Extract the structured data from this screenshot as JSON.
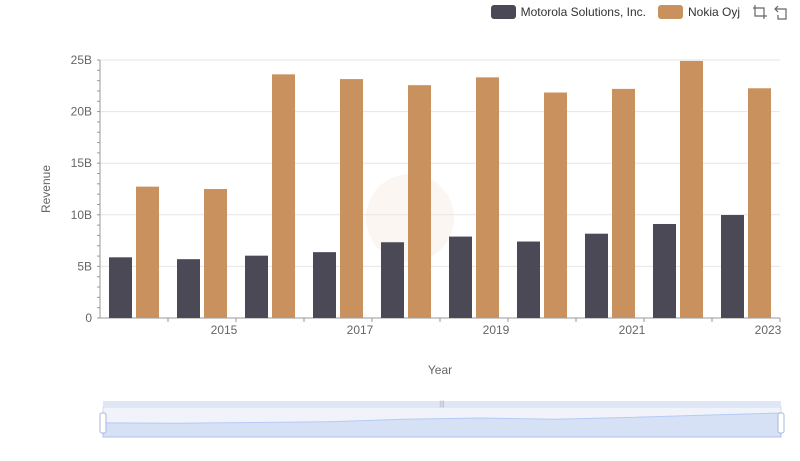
{
  "legend": {
    "items": [
      {
        "label": "Motorola Solutions, Inc.",
        "color": "#4a4955"
      },
      {
        "label": "Nokia Oyj",
        "color": "#c8915e"
      }
    ]
  },
  "toolbox": {
    "icons": [
      "zoom-icon",
      "reset-zoom-icon"
    ]
  },
  "chart_data": {
    "type": "bar",
    "xlabel": "Year",
    "ylabel": "Revenue",
    "ylim": [
      0,
      25000000000
    ],
    "yticks": [
      "0",
      "5B",
      "10B",
      "15B",
      "20B",
      "25B"
    ],
    "xticks": [
      "2015",
      "2017",
      "2019",
      "2021",
      "2023"
    ],
    "categories": [
      "2014",
      "2015",
      "2016",
      "2017",
      "2018",
      "2019",
      "2020",
      "2021",
      "2022",
      "2023"
    ],
    "series": [
      {
        "name": "Motorola Solutions, Inc.",
        "color": "#4a4955",
        "values": [
          5880000000,
          5700000000,
          6040000000,
          6380000000,
          7340000000,
          7890000000,
          7410000000,
          8170000000,
          9110000000,
          9980000000
        ]
      },
      {
        "name": "Nokia Oyj",
        "color": "#c8915e",
        "values": [
          12730000000,
          12500000000,
          23610000000,
          23150000000,
          22560000000,
          23320000000,
          21850000000,
          22200000000,
          24910000000,
          22260000000
        ]
      }
    ],
    "grid": true,
    "legend_position": "top-right",
    "data_zoom": {
      "start": 0,
      "end": 100
    }
  }
}
